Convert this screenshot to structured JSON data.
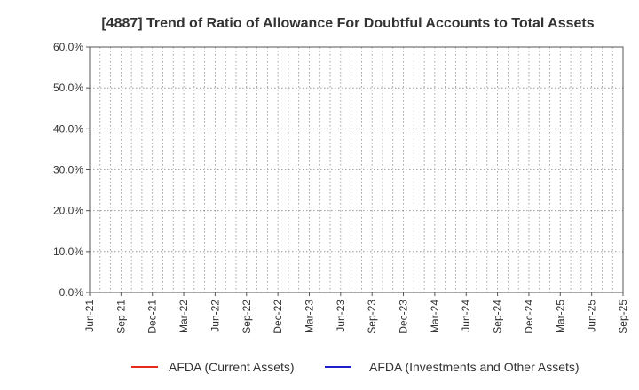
{
  "chart_data": {
    "type": "line",
    "title": "[4887]  Trend of Ratio of Allowance For Doubtful Accounts to Total Assets",
    "xlabel": "",
    "ylabel": "",
    "x_tick_labels": [
      "Jun-21",
      "Sep-21",
      "Dec-21",
      "Mar-22",
      "Jun-22",
      "Sep-22",
      "Dec-22",
      "Mar-23",
      "Jun-23",
      "Sep-23",
      "Dec-23",
      "Mar-24",
      "Jun-24",
      "Sep-24",
      "Dec-24",
      "Mar-25",
      "Jun-25",
      "Sep-25"
    ],
    "x_range": [
      "2021-06",
      "2025-09"
    ],
    "y_tick_labels": [
      "0.0%",
      "10.0%",
      "20.0%",
      "30.0%",
      "40.0%",
      "50.0%",
      "60.0%"
    ],
    "ylim": [
      0,
      60
    ],
    "y_unit": "%",
    "grid": true,
    "legend_position": "bottom",
    "series": [
      {
        "name": "AFDA (Current Assets)",
        "color": "#e8291c",
        "values": []
      },
      {
        "name": "AFDA (Investments and Other Assets)",
        "color": "#1f1fc8",
        "values": []
      }
    ]
  }
}
